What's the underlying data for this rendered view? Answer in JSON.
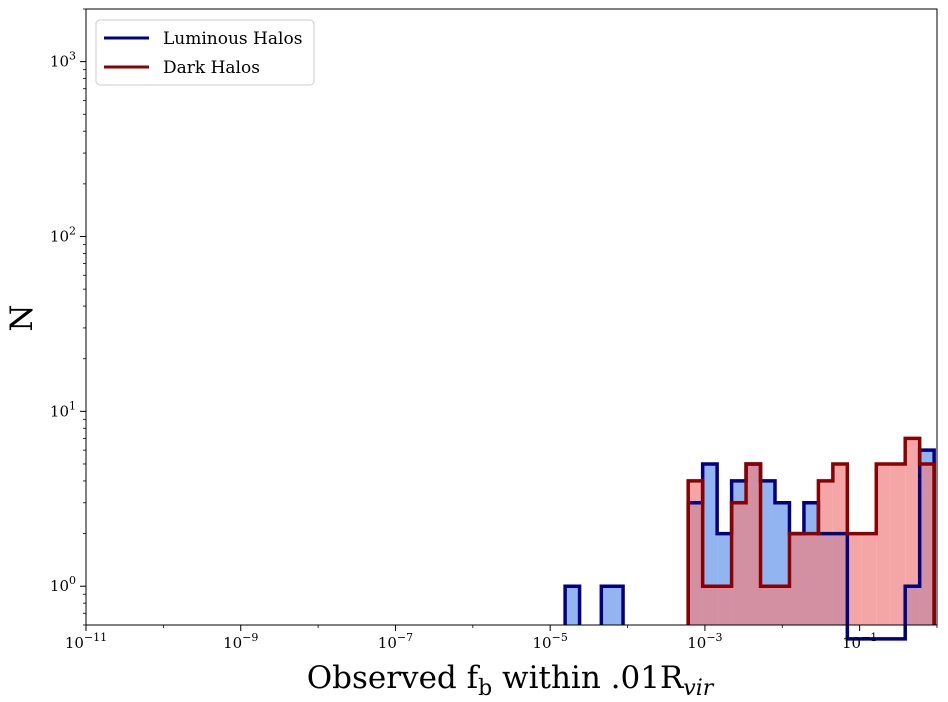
{
  "chart_data": {
    "type": "histogram",
    "xscale": "log",
    "yscale": "log",
    "xlim": [
      1e-11,
      1
    ],
    "ylim": [
      0.6,
      2000
    ],
    "grid": false,
    "legend_position": "upper-left",
    "xlabel": {
      "main": "Observed f",
      "sub": "b",
      "rest": " within .01R",
      "sub2": "vir"
    },
    "ylabel": "N",
    "x_ticks": [
      {
        "value": 1e-11,
        "base": "10",
        "exp": "−11"
      },
      {
        "value": 1e-09,
        "base": "10",
        "exp": "−9"
      },
      {
        "value": 1e-07,
        "base": "10",
        "exp": "−7"
      },
      {
        "value": 1e-05,
        "base": "10",
        "exp": "−5"
      },
      {
        "value": 0.001,
        "base": "10",
        "exp": "−3"
      },
      {
        "value": 0.1,
        "base": "10",
        "exp": "−1"
      }
    ],
    "y_ticks": [
      {
        "value": 1,
        "base": "10",
        "exp": "0"
      },
      {
        "value": 10,
        "base": "10",
        "exp": "1"
      },
      {
        "value": 100,
        "base": "10",
        "exp": "2"
      },
      {
        "value": 1000,
        "base": "10",
        "exp": "3"
      }
    ],
    "bin_log_edges": [
      -4.807,
      -4.62,
      -4.339,
      -4.058,
      -3.871,
      -3.216,
      -3.029,
      -2.842,
      -2.655,
      -2.468,
      -2.281,
      -2.094,
      -1.907,
      -1.72,
      -1.533,
      -1.346,
      -1.159,
      -0.972,
      -0.785,
      -0.598,
      -0.411,
      -0.224,
      -0.037
    ],
    "series": [
      {
        "name": "Luminous Halos",
        "line_color": "#000080",
        "fill_color": "#6495ED",
        "counts": [
          1,
          0,
          1,
          0,
          0,
          3,
          5,
          2,
          4,
          5,
          4,
          3,
          2,
          3,
          2,
          2,
          0.5,
          0.5,
          0.5,
          0.5,
          1,
          6
        ]
      },
      {
        "name": "Dark Halos",
        "line_color": "#8B0000",
        "fill_color": "#F08080",
        "counts": [
          0,
          0,
          0,
          0,
          0,
          4,
          1,
          1,
          3,
          5,
          1,
          1,
          2,
          2,
          4,
          5,
          2,
          2,
          5,
          5,
          7,
          5
        ]
      }
    ]
  }
}
